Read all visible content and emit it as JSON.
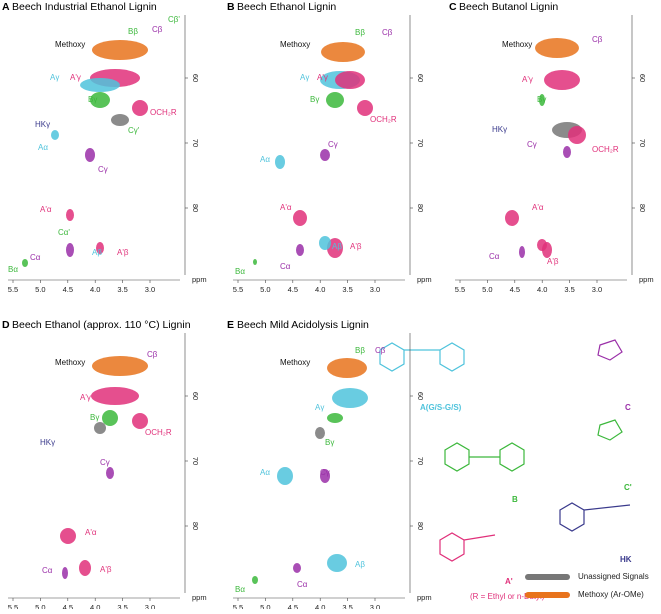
{
  "panels": [
    {
      "letter": "A",
      "title": "Beech Industrial Ethanol Lignin",
      "labels": [
        {
          "text": "Methoxy",
          "color": "#111"
        },
        {
          "text": "Bβ",
          "color": "#3cb83c"
        },
        {
          "text": "Cβ",
          "color": "#9a2fa8"
        },
        {
          "text": "Cβ'",
          "color": "#3cb83c"
        },
        {
          "text": "Aγ",
          "color": "#4fc3dc"
        },
        {
          "text": "A'γ",
          "color": "#e0307a"
        },
        {
          "text": "Bγ",
          "color": "#3cb83c"
        },
        {
          "text": "OCH₂R",
          "color": "#e0307a"
        },
        {
          "text": "HKγ",
          "color": "#3a3a8c"
        },
        {
          "text": "Cγ'",
          "color": "#3cb83c"
        },
        {
          "text": "Aα",
          "color": "#4fc3dc"
        },
        {
          "text": "Cγ",
          "color": "#9a2fa8"
        },
        {
          "text": "A'α",
          "color": "#e0307a"
        },
        {
          "text": "Cα'",
          "color": "#3cb83c"
        },
        {
          "text": "Cα",
          "color": "#9a2fa8"
        },
        {
          "text": "Aβ",
          "color": "#4fc3dc"
        },
        {
          "text": "A'β",
          "color": "#e0307a"
        },
        {
          "text": "Bα",
          "color": "#3cb83c"
        }
      ]
    },
    {
      "letter": "B",
      "title": "Beech Ethanol Lignin",
      "labels": [
        {
          "text": "Methoxy",
          "color": "#111"
        },
        {
          "text": "Bβ",
          "color": "#3cb83c"
        },
        {
          "text": "Cβ",
          "color": "#9a2fa8"
        },
        {
          "text": "Aγ",
          "color": "#4fc3dc"
        },
        {
          "text": "A'γ",
          "color": "#e0307a"
        },
        {
          "text": "Bγ",
          "color": "#3cb83c"
        },
        {
          "text": "OCH₂R",
          "color": "#e0307a"
        },
        {
          "text": "Aα",
          "color": "#4fc3dc"
        },
        {
          "text": "Cγ",
          "color": "#9a2fa8"
        },
        {
          "text": "A'α",
          "color": "#e0307a"
        },
        {
          "text": "Aβ",
          "color": "#4fc3dc"
        },
        {
          "text": "A'β",
          "color": "#e0307a"
        },
        {
          "text": "Cα",
          "color": "#9a2fa8"
        },
        {
          "text": "Bα",
          "color": "#3cb83c"
        }
      ]
    },
    {
      "letter": "C",
      "title": "Beech Butanol Lignin",
      "labels": [
        {
          "text": "Methoxy",
          "color": "#111"
        },
        {
          "text": "Cβ",
          "color": "#9a2fa8"
        },
        {
          "text": "A'γ",
          "color": "#e0307a"
        },
        {
          "text": "Bγ",
          "color": "#3cb83c"
        },
        {
          "text": "HKγ",
          "color": "#3a3a8c"
        },
        {
          "text": "Cγ",
          "color": "#9a2fa8"
        },
        {
          "text": "OCH₂R",
          "color": "#e0307a"
        },
        {
          "text": "A'α",
          "color": "#e0307a"
        },
        {
          "text": "Cα",
          "color": "#9a2fa8"
        },
        {
          "text": "A'β",
          "color": "#e0307a"
        }
      ]
    },
    {
      "letter": "D",
      "title": "Beech Ethanol (approx. 110 °C) Lignin",
      "labels": [
        {
          "text": "Methoxy",
          "color": "#111"
        },
        {
          "text": "Cβ",
          "color": "#9a2fa8"
        },
        {
          "text": "A'γ",
          "color": "#e0307a"
        },
        {
          "text": "Bγ",
          "color": "#3cb83c"
        },
        {
          "text": "OCH₂R",
          "color": "#e0307a"
        },
        {
          "text": "HKγ",
          "color": "#3a3a8c"
        },
        {
          "text": "Cγ",
          "color": "#9a2fa8"
        },
        {
          "text": "A'α",
          "color": "#e0307a"
        },
        {
          "text": "Cα",
          "color": "#9a2fa8"
        },
        {
          "text": "A'β",
          "color": "#e0307a"
        }
      ]
    },
    {
      "letter": "E",
      "title": "Beech Mild Acidolysis Lignin",
      "labels": [
        {
          "text": "Methoxy",
          "color": "#111"
        },
        {
          "text": "Bβ",
          "color": "#3cb83c"
        },
        {
          "text": "Cβ",
          "color": "#9a2fa8"
        },
        {
          "text": "Aγ",
          "color": "#4fc3dc"
        },
        {
          "text": "Bγ",
          "color": "#3cb83c"
        },
        {
          "text": "Aα",
          "color": "#4fc3dc"
        },
        {
          "text": "Cγ",
          "color": "#9a2fa8"
        },
        {
          "text": "Aβ",
          "color": "#4fc3dc"
        },
        {
          "text": "Bα",
          "color": "#3cb83c"
        },
        {
          "text": "Cα",
          "color": "#9a2fa8"
        }
      ]
    }
  ],
  "x_ticks": [
    "5.5",
    "5.0",
    "4.5",
    "4.0",
    "3.5",
    "3.0"
  ],
  "y_ticks": [
    "60",
    "70",
    "80"
  ],
  "unit": "ppm",
  "structures": [
    {
      "text": "A(G/S-G/S)",
      "color": "#4fc3dc"
    },
    {
      "text": "C",
      "color": "#9a2fa8"
    },
    {
      "text": "C'",
      "color": "#3cb83c"
    },
    {
      "text": "B",
      "color": "#3cb83c"
    },
    {
      "text": "HK",
      "color": "#3a3a8c"
    },
    {
      "text": "A'",
      "color": "#e0307a"
    },
    {
      "text": "(R = Ethyl or n-Butyl)",
      "color": "#e0307a"
    }
  ],
  "legend": [
    {
      "text": "Unassigned Signals",
      "color": "#777"
    },
    {
      "text": "Methoxy (Ar-OMe)",
      "color": "#e8731c"
    }
  ]
}
